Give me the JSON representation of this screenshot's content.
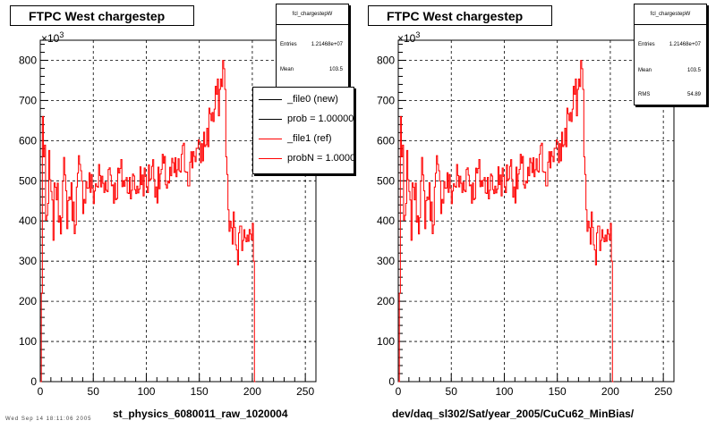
{
  "chart_data": [
    {
      "type": "histogram",
      "title": "FTPC West chargestep",
      "xlabel": "st_physics_6080011_raw_1020004",
      "ylabel": "",
      "y_multiplier_label": "×10",
      "y_multiplier_exponent": "3",
      "xlim": [
        0,
        260
      ],
      "ylim": [
        0,
        850
      ],
      "grid": true,
      "x_ticks": [
        0,
        50,
        100,
        150,
        200,
        250
      ],
      "y_ticks": [
        0,
        100,
        200,
        300,
        400,
        500,
        600,
        700,
        800
      ],
      "series": [
        {
          "name": "_file0 (new)",
          "color": "#000000"
        },
        {
          "name": "_file1 (ref)",
          "color": "#ff0000"
        }
      ],
      "stats": {
        "title": "fcl_chargestepW",
        "entries_label": "Entries",
        "entries_value": "1.21468e+07",
        "mean_label": "Mean",
        "mean_value": "103.5"
      },
      "legend": {
        "position": "top-right",
        "entries": [
          {
            "label": "_file0 (new)",
            "color": "#000000"
          },
          {
            "label": "prob = 1.000000",
            "color": "#000000"
          },
          {
            "label": "_file1 (ref)",
            "color": "#ff0000"
          },
          {
            "label": "probN = 1.000000",
            "color": "#ff0000"
          }
        ]
      }
    },
    {
      "type": "histogram",
      "title": "FTPC West chargestep",
      "xlabel": "dev/daq_sl302/Sat/year_2005/CuCu62_MinBias/",
      "ylabel": "",
      "y_multiplier_label": "×10",
      "y_multiplier_exponent": "3",
      "xlim": [
        0,
        260
      ],
      "ylim": [
        0,
        850
      ],
      "grid": true,
      "x_ticks": [
        0,
        50,
        100,
        150,
        200,
        250
      ],
      "y_ticks": [
        0,
        100,
        200,
        300,
        400,
        500,
        600,
        700,
        800
      ],
      "series": [
        {
          "name": "",
          "color": "#ff0000"
        }
      ],
      "stats": {
        "title": "fcl_chargestepW",
        "entries_label": "Entries",
        "entries_value": "1.21468e+07",
        "mean_label": "Mean",
        "mean_value": "103.5",
        "rms_label": "RMS",
        "rms_value": "54.89"
      }
    }
  ],
  "histogram_anchors": [
    [
      0,
      0
    ],
    [
      1,
      220
    ],
    [
      2,
      660
    ],
    [
      3,
      560
    ],
    [
      4,
      580
    ],
    [
      5,
      420
    ],
    [
      7,
      400
    ],
    [
      8,
      560
    ],
    [
      10,
      440
    ],
    [
      12,
      390
    ],
    [
      14,
      510
    ],
    [
      16,
      450
    ],
    [
      19,
      410
    ],
    [
      22,
      520
    ],
    [
      25,
      420
    ],
    [
      28,
      480
    ],
    [
      32,
      400
    ],
    [
      36,
      530
    ],
    [
      40,
      460
    ],
    [
      45,
      500
    ],
    [
      50,
      470
    ],
    [
      55,
      510
    ],
    [
      60,
      480
    ],
    [
      65,
      530
    ],
    [
      70,
      470
    ],
    [
      75,
      520
    ],
    [
      80,
      490
    ],
    [
      85,
      500
    ],
    [
      90,
      480
    ],
    [
      95,
      510
    ],
    [
      100,
      490
    ],
    [
      105,
      540
    ],
    [
      110,
      480
    ],
    [
      115,
      530
    ],
    [
      120,
      500
    ],
    [
      125,
      520
    ],
    [
      130,
      520
    ],
    [
      135,
      560
    ],
    [
      140,
      520
    ],
    [
      145,
      580
    ],
    [
      150,
      560
    ],
    [
      155,
      600
    ],
    [
      158,
      620
    ],
    [
      160,
      680
    ],
    [
      163,
      650
    ],
    [
      166,
      720
    ],
    [
      168,
      700
    ],
    [
      170,
      740
    ],
    [
      172,
      790
    ],
    [
      174,
      720
    ],
    [
      176,
      480
    ],
    [
      178,
      380
    ],
    [
      180,
      360
    ],
    [
      183,
      400
    ],
    [
      186,
      330
    ],
    [
      189,
      380
    ],
    [
      192,
      350
    ],
    [
      195,
      390
    ],
    [
      198,
      360
    ],
    [
      200,
      380
    ],
    [
      201,
      300
    ],
    [
      202,
      0
    ],
    [
      260,
      0
    ]
  ],
  "footnote": "Wed Sep 14 18:11:06 2005"
}
